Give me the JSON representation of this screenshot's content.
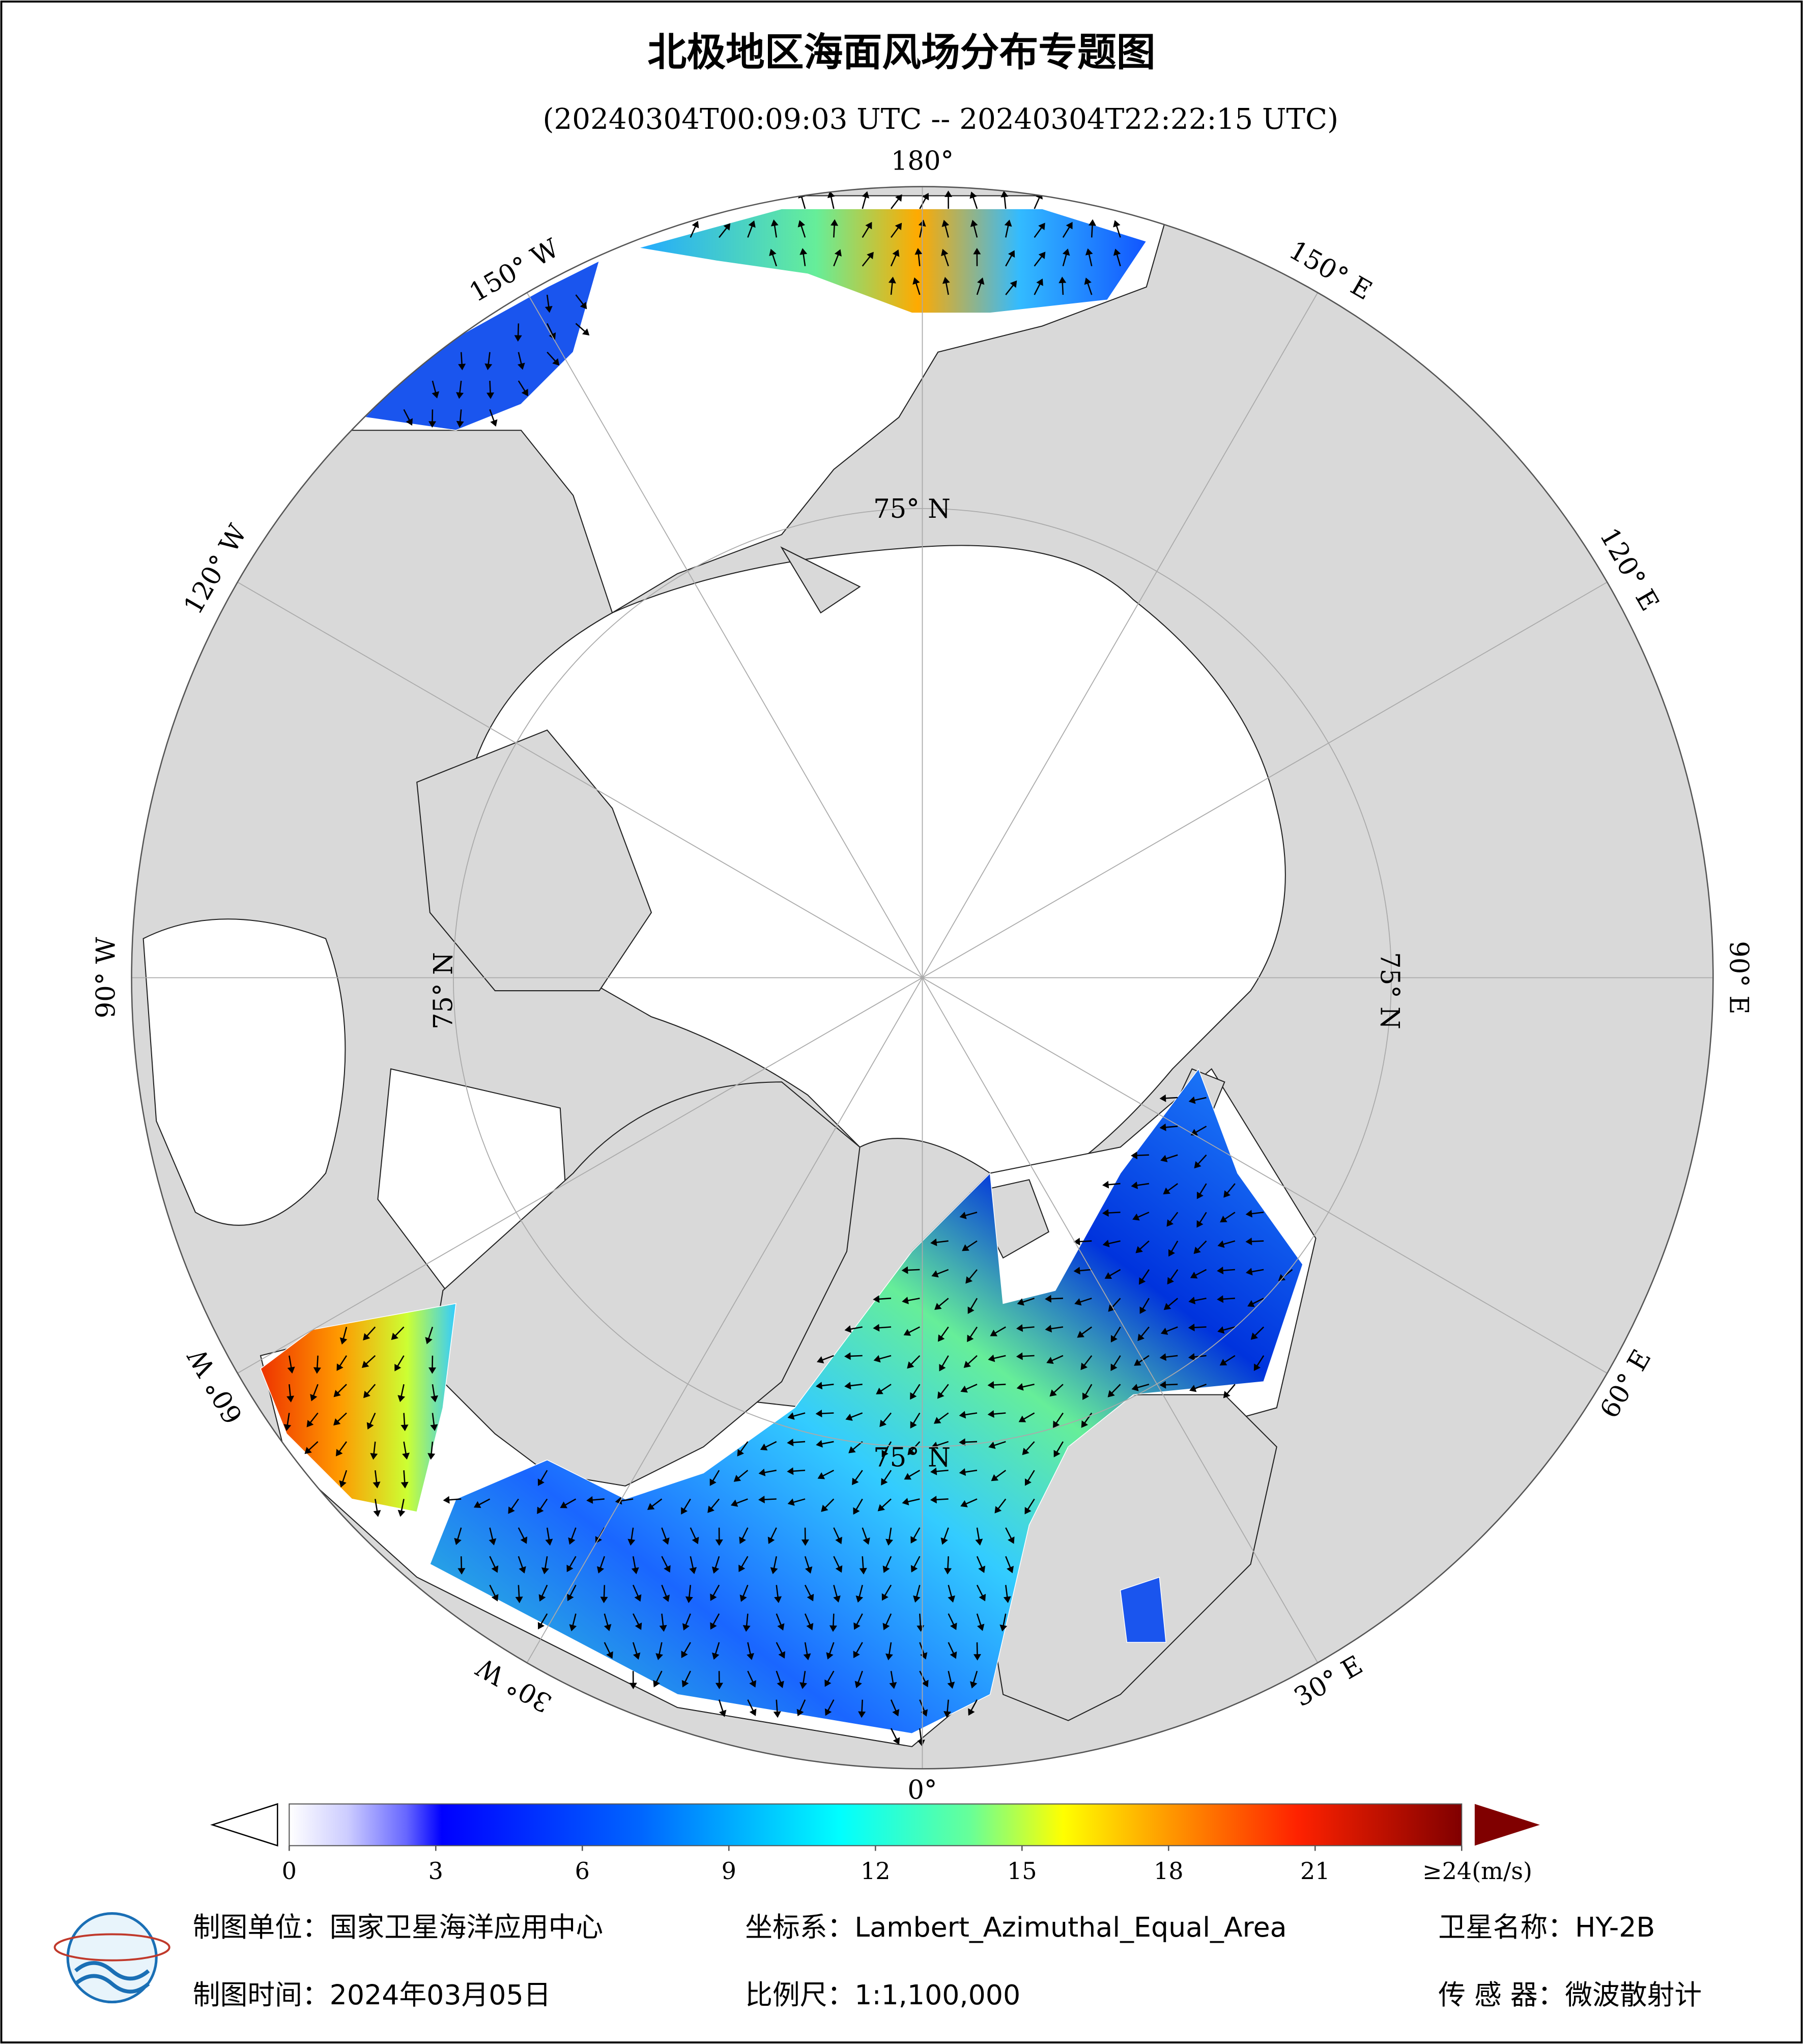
{
  "title": "北极地区海面风场分布专题图",
  "subtitle": "(20240304T00:09:03 UTC -- 20240304T22:22:15 UTC)",
  "map": {
    "longitude_labels": [
      "180°",
      "150° E",
      "120° E",
      "90° E",
      "60° E",
      "30° E",
      "0°",
      "30° W",
      "60° W",
      "90° W",
      "120° W",
      "150° W"
    ],
    "latitude_label": "75° N"
  },
  "colorbar": {
    "range": [
      0,
      24
    ],
    "ticks": [
      0,
      3,
      6,
      9,
      12,
      15,
      18,
      21,
      {
        "value": 24,
        "label": "≥24(m/s)"
      }
    ]
  },
  "footer": {
    "unit": "制图单位：国家卫星海洋应用中心",
    "crs": "坐标系：Lambert_Azimuthal_Equal_Area",
    "satellite": "卫星名称：HY-2B",
    "date": "制图时间：2024年03月05日",
    "scale": "比例尺：1:1,100,000",
    "sensor": "传 感 器：微波散射计"
  }
}
